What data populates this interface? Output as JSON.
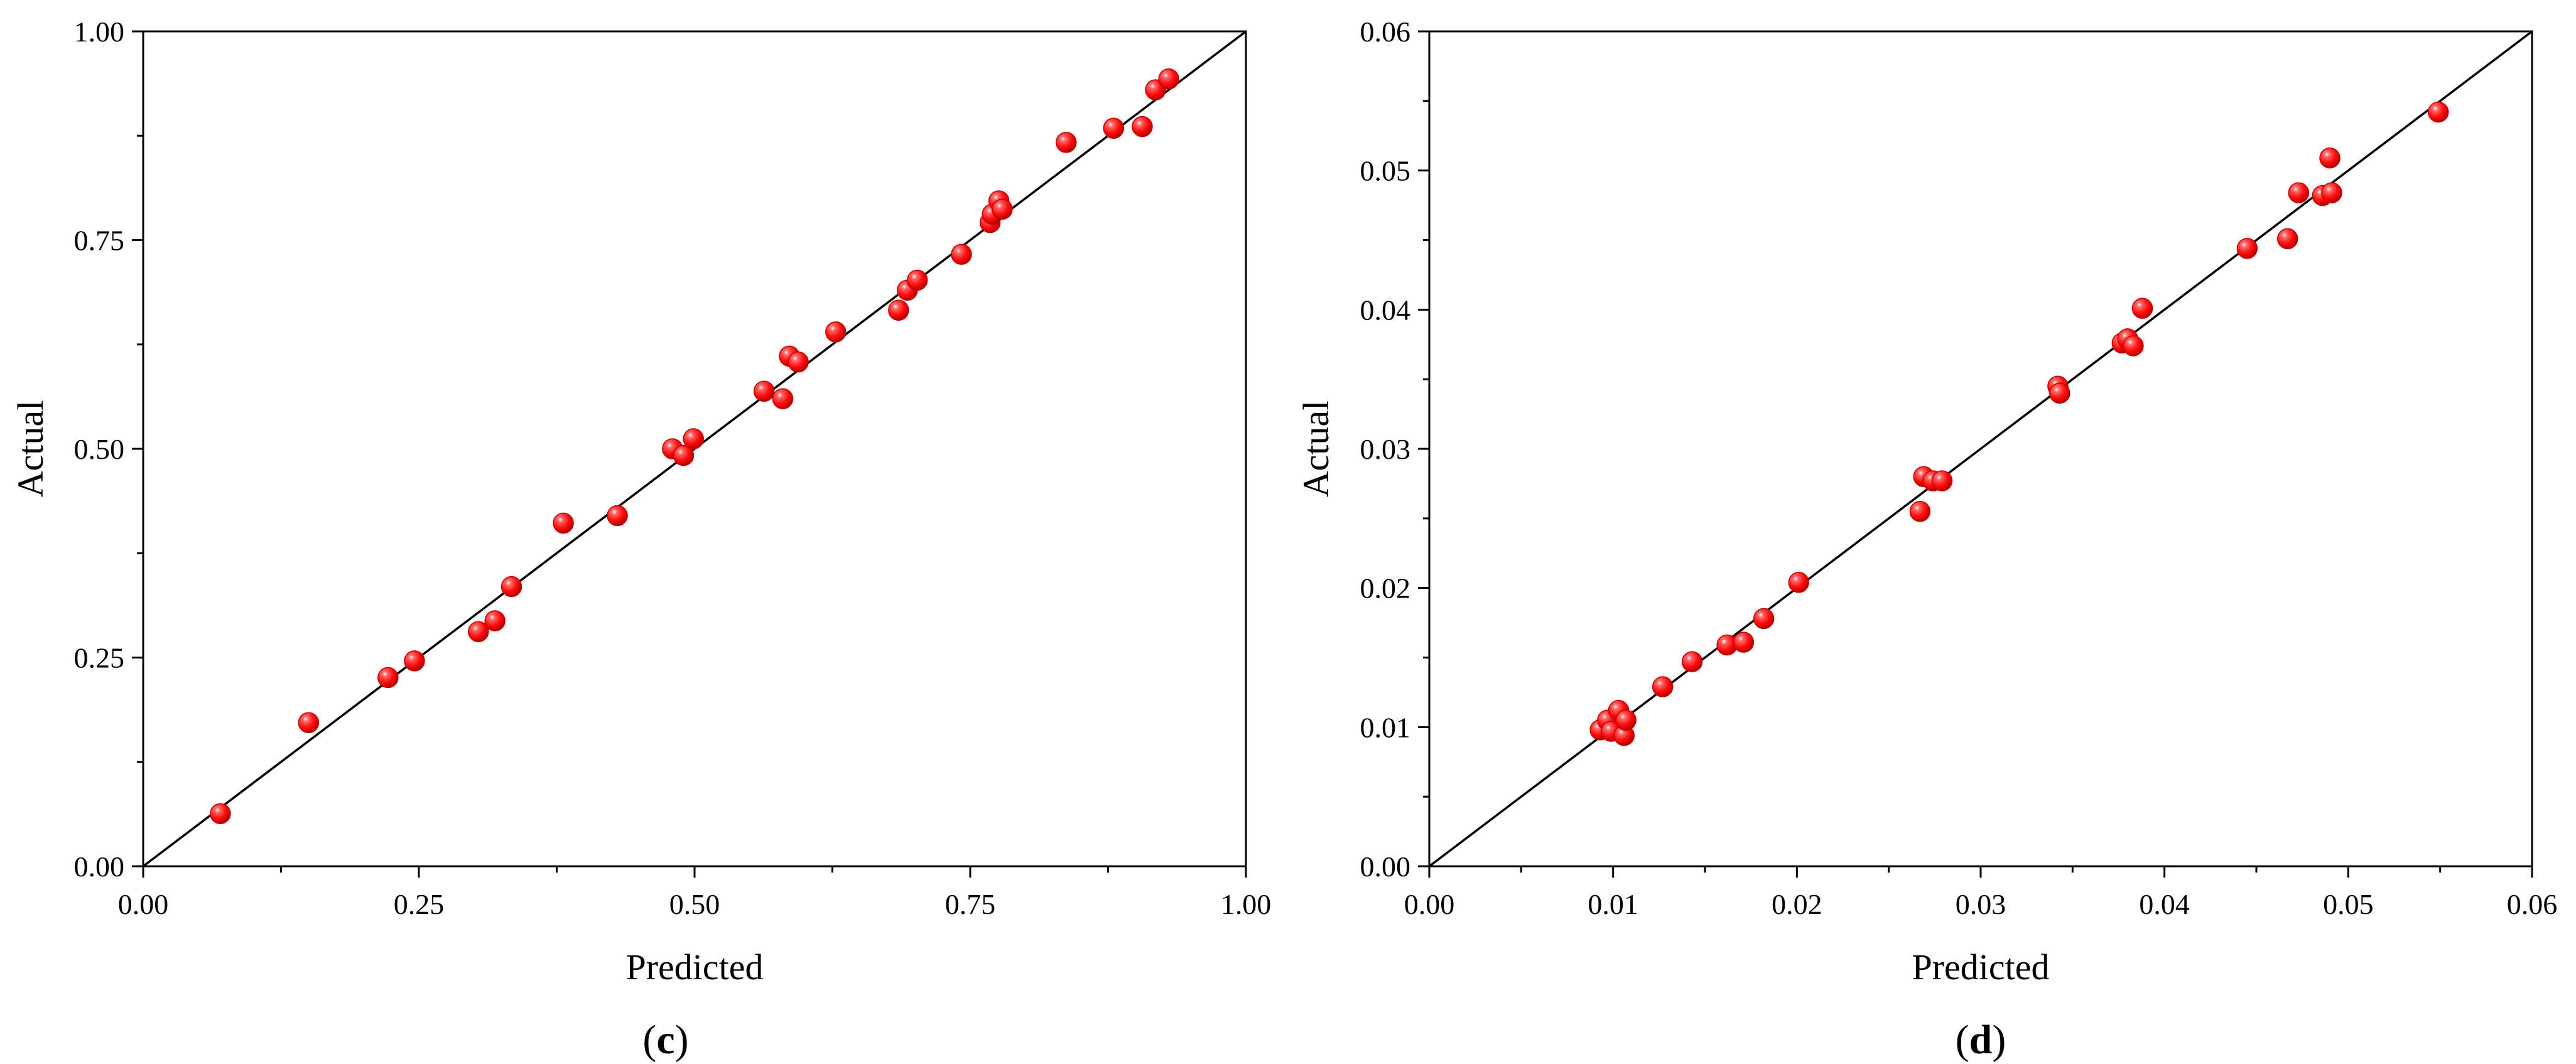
{
  "chart_data": [
    {
      "type": "scatter",
      "panel_label": "c",
      "xlabel": "Predicted",
      "ylabel": "Actual",
      "xlim": [
        0.0,
        1.0
      ],
      "ylim": [
        0.0,
        1.0
      ],
      "x_ticks": [
        "0.00",
        "0.25",
        "0.50",
        "0.75",
        "1.00"
      ],
      "y_ticks": [
        "0.00",
        "0.25",
        "0.50",
        "0.75",
        "1.00"
      ],
      "reference_line": "y = x",
      "marker_color": "#ff1a1a",
      "points": [
        {
          "x": 0.07,
          "y": 0.063
        },
        {
          "x": 0.15,
          "y": 0.172
        },
        {
          "x": 0.222,
          "y": 0.226
        },
        {
          "x": 0.246,
          "y": 0.246
        },
        {
          "x": 0.304,
          "y": 0.281
        },
        {
          "x": 0.319,
          "y": 0.294
        },
        {
          "x": 0.334,
          "y": 0.335
        },
        {
          "x": 0.381,
          "y": 0.411
        },
        {
          "x": 0.43,
          "y": 0.42
        },
        {
          "x": 0.48,
          "y": 0.5
        },
        {
          "x": 0.49,
          "y": 0.492
        },
        {
          "x": 0.499,
          "y": 0.512
        },
        {
          "x": 0.563,
          "y": 0.569
        },
        {
          "x": 0.58,
          "y": 0.56
        },
        {
          "x": 0.586,
          "y": 0.611
        },
        {
          "x": 0.594,
          "y": 0.604
        },
        {
          "x": 0.628,
          "y": 0.64
        },
        {
          "x": 0.685,
          "y": 0.666
        },
        {
          "x": 0.693,
          "y": 0.69
        },
        {
          "x": 0.702,
          "y": 0.702
        },
        {
          "x": 0.742,
          "y": 0.733
        },
        {
          "x": 0.768,
          "y": 0.771
        },
        {
          "x": 0.77,
          "y": 0.781
        },
        {
          "x": 0.776,
          "y": 0.797
        },
        {
          "x": 0.779,
          "y": 0.787
        },
        {
          "x": 0.837,
          "y": 0.867
        },
        {
          "x": 0.88,
          "y": 0.884
        },
        {
          "x": 0.906,
          "y": 0.886
        },
        {
          "x": 0.918,
          "y": 0.93
        },
        {
          "x": 0.93,
          "y": 0.943
        }
      ]
    },
    {
      "type": "scatter",
      "panel_label": "d",
      "xlabel": "Predicted",
      "ylabel": "Actual",
      "xlim": [
        0.0,
        0.06
      ],
      "ylim": [
        0.0,
        0.06
      ],
      "x_ticks": [
        "0.00",
        "0.01",
        "0.02",
        "0.03",
        "0.04",
        "0.05",
        "0.06"
      ],
      "y_ticks": [
        "0.00",
        "0.01",
        "0.02",
        "0.03",
        "0.04",
        "0.05",
        "0.06"
      ],
      "reference_line": "y = x",
      "marker_color": "#ff1a1a",
      "points": [
        {
          "x": 0.0093,
          "y": 0.0098
        },
        {
          "x": 0.0097,
          "y": 0.0105
        },
        {
          "x": 0.0099,
          "y": 0.0097
        },
        {
          "x": 0.0103,
          "y": 0.0112
        },
        {
          "x": 0.0106,
          "y": 0.0094
        },
        {
          "x": 0.0107,
          "y": 0.0105
        },
        {
          "x": 0.0127,
          "y": 0.0129
        },
        {
          "x": 0.0143,
          "y": 0.0147
        },
        {
          "x": 0.0162,
          "y": 0.0159
        },
        {
          "x": 0.0171,
          "y": 0.0161
        },
        {
          "x": 0.0182,
          "y": 0.0178
        },
        {
          "x": 0.0201,
          "y": 0.0204
        },
        {
          "x": 0.0267,
          "y": 0.0255
        },
        {
          "x": 0.0269,
          "y": 0.028
        },
        {
          "x": 0.0274,
          "y": 0.0277
        },
        {
          "x": 0.0279,
          "y": 0.0277
        },
        {
          "x": 0.0342,
          "y": 0.0345
        },
        {
          "x": 0.0343,
          "y": 0.034
        },
        {
          "x": 0.0377,
          "y": 0.0376
        },
        {
          "x": 0.038,
          "y": 0.0379
        },
        {
          "x": 0.0383,
          "y": 0.0374
        },
        {
          "x": 0.0388,
          "y": 0.0401
        },
        {
          "x": 0.0445,
          "y": 0.0444
        },
        {
          "x": 0.0467,
          "y": 0.0451
        },
        {
          "x": 0.0473,
          "y": 0.0484
        },
        {
          "x": 0.0486,
          "y": 0.0482
        },
        {
          "x": 0.049,
          "y": 0.0509
        },
        {
          "x": 0.0491,
          "y": 0.0484
        },
        {
          "x": 0.0549,
          "y": 0.0542
        }
      ]
    }
  ]
}
